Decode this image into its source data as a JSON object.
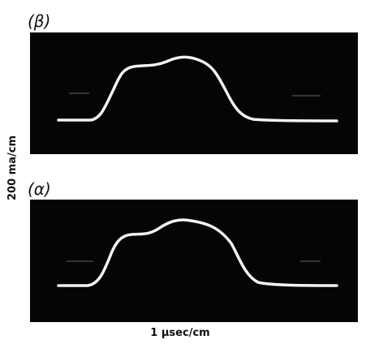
{
  "panels": [
    {
      "label": "(β)"
    },
    {
      "label": "(α)"
    }
  ],
  "y_axis_label": "200 ma/cm",
  "x_axis_label": "1 μsec/cm"
}
